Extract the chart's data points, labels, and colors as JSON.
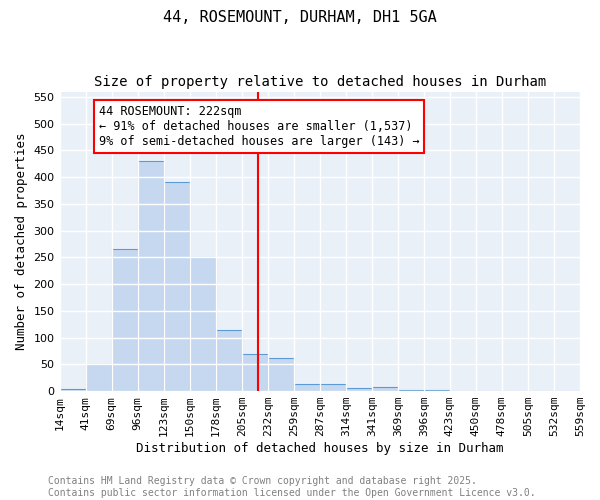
{
  "title": "44, ROSEMOUNT, DURHAM, DH1 5GA",
  "subtitle": "Size of property relative to detached houses in Durham",
  "xlabel": "Distribution of detached houses by size in Durham",
  "ylabel": "Number of detached properties",
  "bin_labels": [
    "14sqm",
    "41sqm",
    "69sqm",
    "96sqm",
    "123sqm",
    "150sqm",
    "178sqm",
    "205sqm",
    "232sqm",
    "259sqm",
    "287sqm",
    "314sqm",
    "341sqm",
    "369sqm",
    "396sqm",
    "423sqm",
    "450sqm",
    "478sqm",
    "505sqm",
    "532sqm",
    "559sqm"
  ],
  "bar_values": [
    3,
    50,
    265,
    430,
    390,
    250,
    115,
    70,
    62,
    14,
    13,
    6,
    7,
    2,
    2,
    1,
    0,
    0,
    0,
    1
  ],
  "bar_color": "#c5d8f0",
  "bar_edge_color": "#5b9bd5",
  "vline_color": "red",
  "annotation_text": "44 ROSEMOUNT: 222sqm\n← 91% of detached houses are smaller (1,537)\n9% of semi-detached houses are larger (143) →",
  "annotation_box_color": "white",
  "annotation_box_edge": "red",
  "ylim": [
    0,
    560
  ],
  "yticks": [
    0,
    50,
    100,
    150,
    200,
    250,
    300,
    350,
    400,
    450,
    500,
    550
  ],
  "bg_color": "#eaf0f8",
  "grid_color": "white",
  "footer_text": "Contains HM Land Registry data © Crown copyright and database right 2025.\nContains public sector information licensed under the Open Government Licence v3.0.",
  "title_fontsize": 11,
  "subtitle_fontsize": 10,
  "axis_label_fontsize": 9,
  "tick_fontsize": 8,
  "annotation_fontsize": 8.5,
  "footer_fontsize": 7
}
